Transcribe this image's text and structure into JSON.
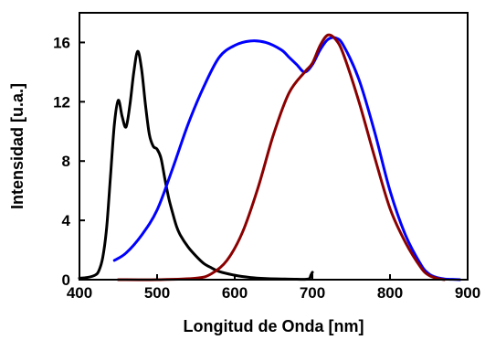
{
  "chart_data": {
    "type": "line",
    "title": "",
    "xlabel": "Longitud de Onda [nm]",
    "ylabel": "Intensidad [u.a.]",
    "xlim": [
      400,
      900
    ],
    "ylim": [
      0,
      18
    ],
    "xticks": [
      400,
      500,
      600,
      700,
      800,
      900
    ],
    "yticks": [
      0,
      4,
      8,
      12,
      16
    ],
    "grid": false,
    "legend": "none",
    "series": [
      {
        "color": "#000000",
        "x": [
          400,
          410,
          420,
          425,
          430,
          435,
          440,
          445,
          450,
          455,
          460,
          465,
          470,
          475,
          480,
          485,
          490,
          495,
          500,
          505,
          510,
          515,
          520,
          525,
          530,
          540,
          550,
          560,
          570,
          580,
          600,
          620,
          640,
          660,
          680,
          695,
          698,
          700
        ],
        "y": [
          0.1,
          0.15,
          0.3,
          0.6,
          1.5,
          3.5,
          7.0,
          10.5,
          12.1,
          11.0,
          10.3,
          11.8,
          14.0,
          15.4,
          14.2,
          11.8,
          9.8,
          9.0,
          8.8,
          8.2,
          6.8,
          5.5,
          4.5,
          3.6,
          3.0,
          2.2,
          1.6,
          1.1,
          0.8,
          0.55,
          0.3,
          0.15,
          0.08,
          0.05,
          0.03,
          0.05,
          0.3,
          0.5
        ]
      },
      {
        "color": "#0000ff",
        "x": [
          445,
          460,
          480,
          500,
          520,
          540,
          560,
          580,
          600,
          620,
          640,
          660,
          670,
          680,
          690,
          700,
          710,
          720,
          730,
          740,
          760,
          780,
          800,
          820,
          840,
          850,
          860,
          870,
          880,
          890
        ],
        "y": [
          1.3,
          1.8,
          3.0,
          4.7,
          7.5,
          10.5,
          13.0,
          15.0,
          15.8,
          16.1,
          16.0,
          15.5,
          15.0,
          14.5,
          14.0,
          14.5,
          15.5,
          16.2,
          16.3,
          15.8,
          13.5,
          10.0,
          6.0,
          3.0,
          1.0,
          0.4,
          0.15,
          0.05,
          0.02,
          0.0
        ]
      },
      {
        "color": "#8b0000",
        "x": [
          450,
          500,
          550,
          570,
          590,
          610,
          630,
          650,
          670,
          690,
          700,
          710,
          720,
          730,
          740,
          760,
          780,
          800,
          820,
          840,
          850,
          860,
          870
        ],
        "y": [
          0.0,
          0.0,
          0.1,
          0.4,
          1.3,
          3.2,
          6.2,
          9.8,
          12.6,
          14.0,
          14.6,
          15.8,
          16.5,
          16.2,
          15.2,
          12.0,
          8.3,
          4.8,
          2.5,
          0.8,
          0.3,
          0.1,
          0.0
        ]
      }
    ]
  }
}
